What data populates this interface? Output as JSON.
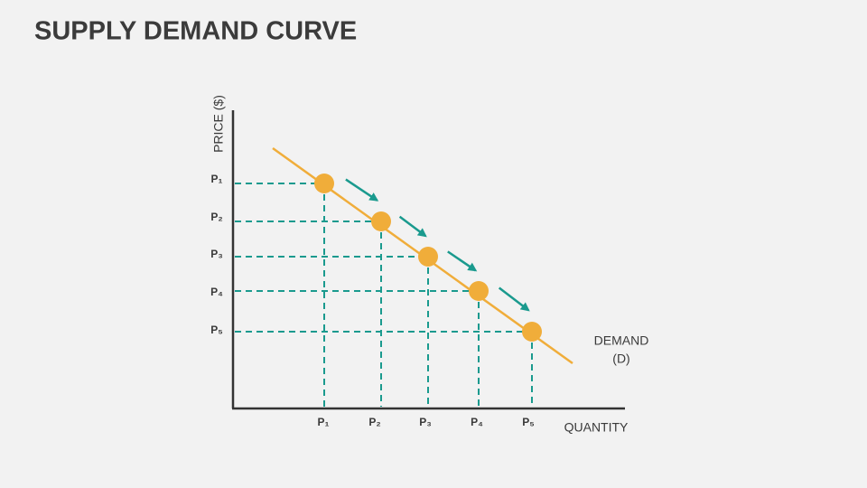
{
  "header": {
    "title": "SUPPLY DEMAND CURVE"
  },
  "diagram": {
    "y_axis_label": "PRICE ($)",
    "x_axis_label": "QUANTITY",
    "curve_label": [
      "DEMAND",
      "(D)"
    ],
    "y_labels": [
      "P₁",
      "P₂",
      "P₃",
      "P₄",
      "P₅"
    ],
    "x_labels": [
      "P₁",
      "P₂",
      "P₃",
      "P₄",
      "P₅"
    ]
  }
}
